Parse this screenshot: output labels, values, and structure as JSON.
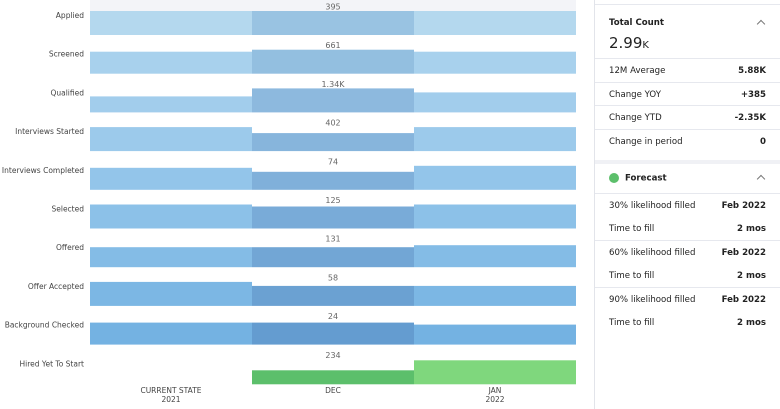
{
  "funnel": {
    "stages": [
      "Applied",
      "Screened",
      "Qualified",
      "Interviews Started",
      "Interviews Completed",
      "Selected",
      "Offered",
      "Offer Accepted",
      "Background Checked",
      "Hired Yet To Start"
    ],
    "dec_labels": [
      "395",
      "661",
      "1.34K",
      "402",
      "74",
      "125",
      "131",
      "58",
      "24",
      "234"
    ],
    "columns": [
      {
        "label": "CURRENT STATE",
        "sub": "2021"
      },
      {
        "label": "DEC"
      },
      {
        "label": "JAN",
        "sub": "2022"
      }
    ]
  },
  "panel": {
    "total_count": {
      "title": "Total Count",
      "value": "2.99",
      "unit": "K"
    },
    "stats": [
      [
        "12M Average",
        "5.88K"
      ],
      [
        "Change YOY",
        "+385"
      ],
      [
        "Change YTD",
        "-2.35K"
      ],
      [
        "Change in period",
        "0"
      ]
    ],
    "forecast": {
      "title": "Forecast",
      "rows": [
        [
          "30% likelihood filled",
          "Feb 2022"
        ],
        [
          "Time to fill",
          "2 mos"
        ],
        [
          "60% likelihood filled",
          "Feb 2022"
        ],
        [
          "Time to fill",
          "2 mos"
        ],
        [
          "90% likelihood filled",
          "Feb 2022"
        ],
        [
          "Time to fill",
          "2 mos"
        ]
      ]
    }
  }
}
